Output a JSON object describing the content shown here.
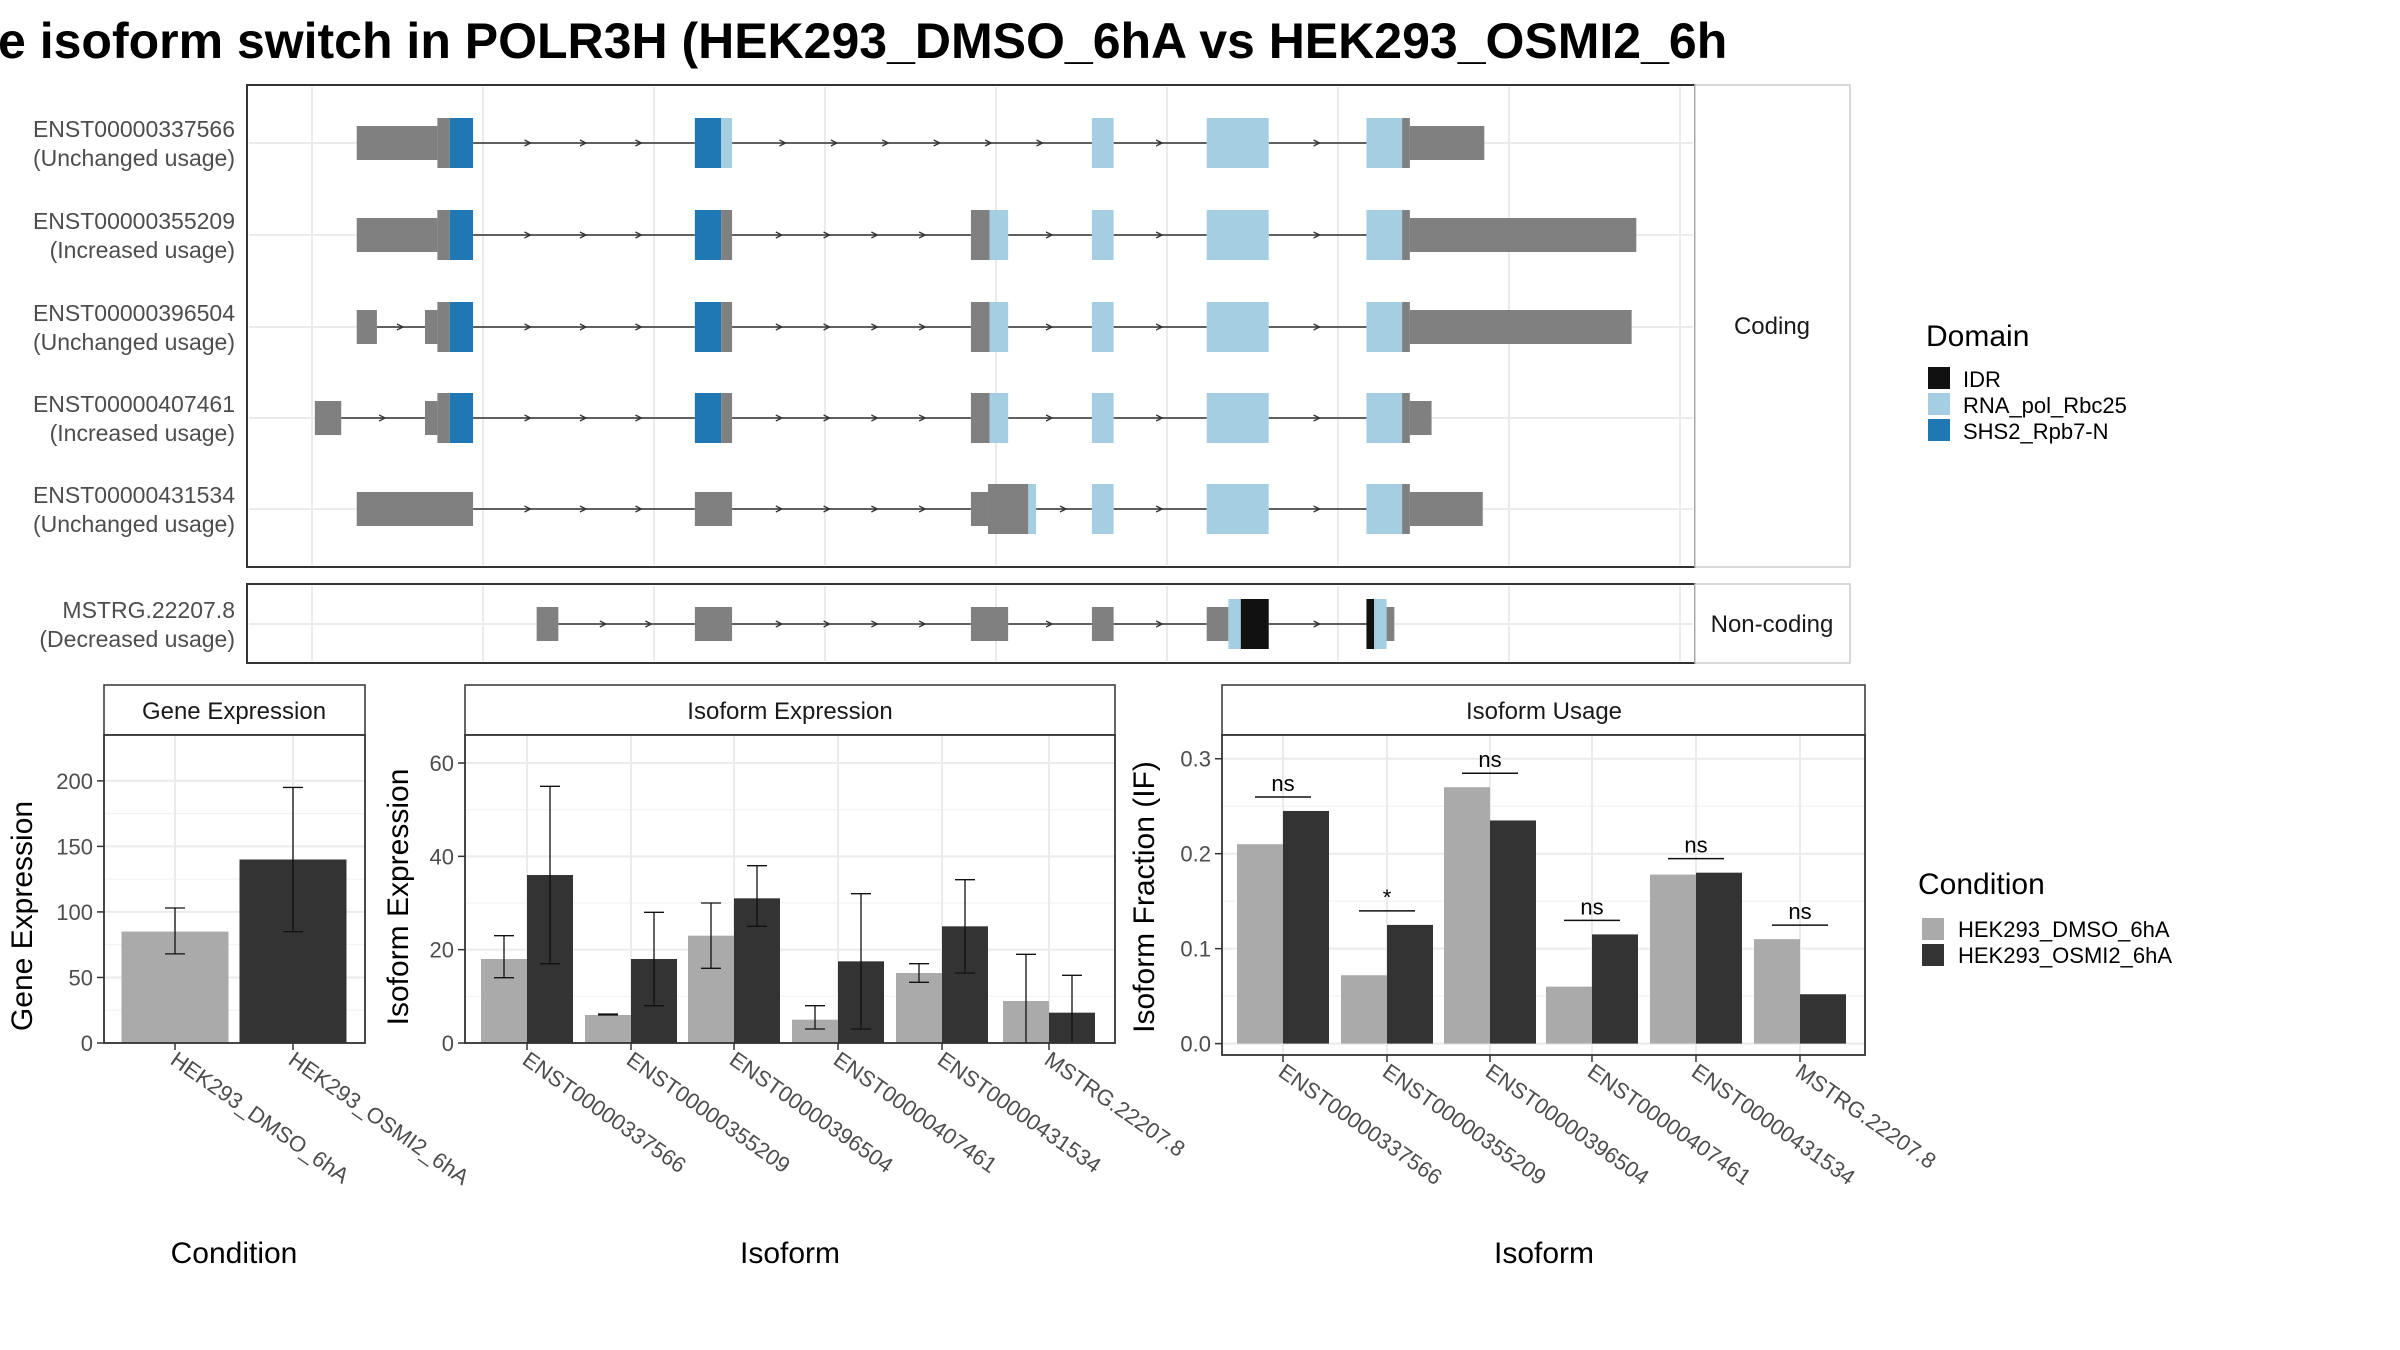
{
  "title": "e isoform switch in POLR3H (HEK293_DMSO_6hA vs HEK293_OSMI2_6h",
  "colors": {
    "utr": "#808080",
    "IDR": "#111111",
    "RNA_pol_Rbc25": "#a6cee3",
    "SHS2_Rpb7-N": "#1f78b4",
    "HEK293_DMSO_6hA": "#aaaaaa",
    "HEK293_OSMI2_6hA": "#333333"
  },
  "facets": {
    "coding": "Coding",
    "noncoding": "Non-coding"
  },
  "transcripts": [
    {
      "id": "ENST00000337566",
      "usage": "(Unchanged usage)",
      "facet": "coding",
      "features": [
        {
          "t": "utr",
          "x": [
            230,
            282
          ]
        },
        {
          "t": "cds",
          "x": [
            282,
            290
          ]
        },
        {
          "t": "SHS2_Rpb7-N",
          "x": [
            290,
            305
          ]
        },
        {
          "t": "SHS2_Rpb7-N",
          "x": [
            448,
            465
          ]
        },
        {
          "t": "RNA_pol_Rbc25",
          "x": [
            465,
            472
          ]
        },
        {
          "t": "RNA_pol_Rbc25",
          "x": [
            704,
            718
          ]
        },
        {
          "t": "RNA_pol_Rbc25",
          "x": [
            778,
            818
          ]
        },
        {
          "t": "RNA_pol_Rbc25",
          "x": [
            881,
            904
          ]
        },
        {
          "t": "cds",
          "x": [
            904,
            909
          ]
        },
        {
          "t": "utr",
          "x": [
            909,
            957
          ]
        }
      ]
    },
    {
      "id": "ENST00000355209",
      "usage": "(Increased usage)",
      "facet": "coding",
      "features": [
        {
          "t": "utr",
          "x": [
            230,
            282
          ]
        },
        {
          "t": "cds",
          "x": [
            282,
            290
          ]
        },
        {
          "t": "SHS2_Rpb7-N",
          "x": [
            290,
            305
          ]
        },
        {
          "t": "SHS2_Rpb7-N",
          "x": [
            448,
            465
          ]
        },
        {
          "t": "cds",
          "x": [
            465,
            472
          ]
        },
        {
          "t": "cds",
          "x": [
            626,
            638
          ]
        },
        {
          "t": "RNA_pol_Rbc25",
          "x": [
            638,
            650
          ]
        },
        {
          "t": "RNA_pol_Rbc25",
          "x": [
            704,
            718
          ]
        },
        {
          "t": "RNA_pol_Rbc25",
          "x": [
            778,
            818
          ]
        },
        {
          "t": "RNA_pol_Rbc25",
          "x": [
            881,
            904
          ]
        },
        {
          "t": "cds",
          "x": [
            904,
            909
          ]
        },
        {
          "t": "utr",
          "x": [
            909,
            1055
          ]
        }
      ]
    },
    {
      "id": "ENST00000396504",
      "usage": "(Unchanged usage)",
      "facet": "coding",
      "features": [
        {
          "t": "utr",
          "x": [
            230,
            243
          ]
        },
        {
          "t": "utr",
          "x": [
            274,
            282
          ]
        },
        {
          "t": "cds",
          "x": [
            282,
            290
          ]
        },
        {
          "t": "SHS2_Rpb7-N",
          "x": [
            290,
            305
          ]
        },
        {
          "t": "SHS2_Rpb7-N",
          "x": [
            448,
            465
          ]
        },
        {
          "t": "cds",
          "x": [
            465,
            472
          ]
        },
        {
          "t": "cds",
          "x": [
            626,
            638
          ]
        },
        {
          "t": "RNA_pol_Rbc25",
          "x": [
            638,
            650
          ]
        },
        {
          "t": "RNA_pol_Rbc25",
          "x": [
            704,
            718
          ]
        },
        {
          "t": "RNA_pol_Rbc25",
          "x": [
            778,
            818
          ]
        },
        {
          "t": "RNA_pol_Rbc25",
          "x": [
            881,
            904
          ]
        },
        {
          "t": "cds",
          "x": [
            904,
            909
          ]
        },
        {
          "t": "utr",
          "x": [
            909,
            1052
          ]
        }
      ]
    },
    {
      "id": "ENST00000407461",
      "usage": "(Increased usage)",
      "facet": "coding",
      "features": [
        {
          "t": "utr",
          "x": [
            203,
            220
          ]
        },
        {
          "t": "utr",
          "x": [
            274,
            282
          ]
        },
        {
          "t": "cds",
          "x": [
            282,
            290
          ]
        },
        {
          "t": "SHS2_Rpb7-N",
          "x": [
            290,
            305
          ]
        },
        {
          "t": "SHS2_Rpb7-N",
          "x": [
            448,
            465
          ]
        },
        {
          "t": "cds",
          "x": [
            465,
            472
          ]
        },
        {
          "t": "cds",
          "x": [
            626,
            638
          ]
        },
        {
          "t": "RNA_pol_Rbc25",
          "x": [
            638,
            650
          ]
        },
        {
          "t": "RNA_pol_Rbc25",
          "x": [
            704,
            718
          ]
        },
        {
          "t": "RNA_pol_Rbc25",
          "x": [
            778,
            818
          ]
        },
        {
          "t": "RNA_pol_Rbc25",
          "x": [
            881,
            904
          ]
        },
        {
          "t": "cds",
          "x": [
            904,
            909
          ]
        },
        {
          "t": "utr",
          "x": [
            909,
            923
          ]
        }
      ]
    },
    {
      "id": "ENST00000431534",
      "usage": "(Unchanged usage)",
      "facet": "coding",
      "features": [
        {
          "t": "utr",
          "x": [
            230,
            305
          ]
        },
        {
          "t": "utr",
          "x": [
            448,
            472
          ]
        },
        {
          "t": "utr",
          "x": [
            626,
            637
          ]
        },
        {
          "t": "cds",
          "x": [
            637,
            663
          ]
        },
        {
          "t": "RNA_pol_Rbc25",
          "x": [
            663,
            668
          ]
        },
        {
          "t": "RNA_pol_Rbc25",
          "x": [
            704,
            718
          ]
        },
        {
          "t": "RNA_pol_Rbc25",
          "x": [
            778,
            818
          ]
        },
        {
          "t": "RNA_pol_Rbc25",
          "x": [
            881,
            904
          ]
        },
        {
          "t": "cds",
          "x": [
            904,
            909
          ]
        },
        {
          "t": "utr",
          "x": [
            909,
            956
          ]
        }
      ]
    },
    {
      "id": "MSTRG.22207.8",
      "usage": "(Decreased usage)",
      "facet": "noncoding",
      "features": [
        {
          "t": "utr",
          "x": [
            346,
            360
          ]
        },
        {
          "t": "utr",
          "x": [
            448,
            472
          ]
        },
        {
          "t": "utr",
          "x": [
            626,
            650
          ]
        },
        {
          "t": "utr",
          "x": [
            704,
            718
          ]
        },
        {
          "t": "utr",
          "x": [
            778,
            792
          ]
        },
        {
          "t": "RNA_pol_Rbc25",
          "x": [
            792,
            800
          ]
        },
        {
          "t": "IDR",
          "x": [
            800,
            818
          ]
        },
        {
          "t": "IDR",
          "x": [
            881,
            886
          ]
        },
        {
          "t": "RNA_pol_Rbc25",
          "x": [
            886,
            894
          ]
        },
        {
          "t": "utr",
          "x": [
            894,
            899
          ]
        }
      ]
    }
  ],
  "legend_domain": {
    "title": "Domain",
    "items": [
      {
        "label": "IDR",
        "key": "IDR"
      },
      {
        "label": "RNA_pol_Rbc25",
        "key": "RNA_pol_Rbc25"
      },
      {
        "label": "SHS2_Rpb7-N",
        "key": "SHS2_Rpb7-N"
      }
    ]
  },
  "legend_condition": {
    "title": "Condition",
    "items": [
      {
        "label": "HEK293_DMSO_6hA",
        "key": "HEK293_DMSO_6hA"
      },
      {
        "label": "HEK293_OSMI2_6hA",
        "key": "HEK293_OSMI2_6hA"
      }
    ]
  },
  "chart_data": [
    {
      "type": "bar",
      "title": "Gene Expression",
      "xlabel": "Condition",
      "ylabel": "Gene Expression",
      "categories": [
        "HEK293_DMSO_6hA",
        "HEK293_OSMI2_6hA"
      ],
      "values": [
        85,
        140
      ],
      "error_low": [
        68,
        85
      ],
      "error_high": [
        103,
        195
      ],
      "ylim": [
        0,
        235
      ],
      "yticks": [
        0,
        50,
        100,
        150,
        200
      ]
    },
    {
      "type": "bar",
      "title": "Isoform Expression",
      "xlabel": "Isoform",
      "ylabel": "Isoform Expression",
      "categories": [
        "ENST00000337566",
        "ENST00000355209",
        "ENST00000396504",
        "ENST00000407461",
        "ENST00000431534",
        "MSTRG.22207.8"
      ],
      "series": [
        {
          "name": "HEK293_DMSO_6hA",
          "values": [
            18,
            6,
            23,
            5,
            15,
            9
          ],
          "error_low": [
            14,
            6,
            16,
            3,
            13,
            0
          ],
          "error_high": [
            23,
            6.2,
            30,
            8,
            17,
            19
          ]
        },
        {
          "name": "HEK293_OSMI2_6hA",
          "values": [
            36,
            18,
            31,
            17.5,
            25,
            6.5
          ],
          "error_low": [
            17,
            8,
            25,
            3,
            15,
            0
          ],
          "error_high": [
            55,
            28,
            38,
            32,
            35,
            14.5
          ]
        }
      ],
      "ylim": [
        0,
        66
      ],
      "yticks": [
        0,
        20,
        40,
        60
      ]
    },
    {
      "type": "bar",
      "title": "Isoform Usage",
      "xlabel": "Isoform",
      "ylabel": "Isoform Fraction (IF)",
      "categories": [
        "ENST00000337566",
        "ENST00000355209",
        "ENST00000396504",
        "ENST00000407461",
        "ENST00000431534",
        "MSTRG.22207.8"
      ],
      "series": [
        {
          "name": "HEK293_DMSO_6hA",
          "values": [
            0.21,
            0.072,
            0.27,
            0.06,
            0.178,
            0.11
          ]
        },
        {
          "name": "HEK293_OSMI2_6hA",
          "values": [
            0.245,
            0.125,
            0.235,
            0.115,
            0.18,
            0.052
          ]
        }
      ],
      "significance": [
        "ns",
        "*",
        "ns",
        "ns",
        "ns",
        "ns"
      ],
      "ylim": [
        -0.012,
        0.325
      ],
      "yticks": [
        0.0,
        0.1,
        0.2,
        0.3
      ],
      "ytick_labels": [
        "0.0",
        "0.1",
        "0.2",
        "0.3"
      ]
    }
  ]
}
